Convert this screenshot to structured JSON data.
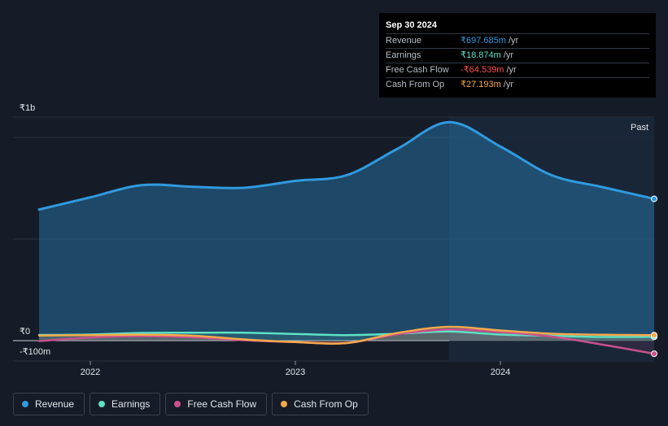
{
  "tooltip": {
    "date": "Sep 30 2024",
    "rows": [
      {
        "label": "Revenue",
        "value": "₹697.685m",
        "unit": "/yr",
        "color": "#2f9ae0"
      },
      {
        "label": "Earnings",
        "value": "₹18.874m",
        "unit": "/yr",
        "color": "#5fe0c4"
      },
      {
        "label": "Free Cash Flow",
        "value": "-₹64.539m",
        "unit": "/yr",
        "color": "#ff4d4d"
      },
      {
        "label": "Cash From Op",
        "value": "₹27.193m",
        "unit": "/yr",
        "color": "#f5a94b"
      }
    ]
  },
  "legend": [
    {
      "label": "Revenue",
      "color": "#2f9ae0"
    },
    {
      "label": "Earnings",
      "color": "#5fe0c4"
    },
    {
      "label": "Free Cash Flow",
      "color": "#c8508c"
    },
    {
      "label": "Cash From Op",
      "color": "#f5a94b"
    }
  ],
  "chart_data": {
    "type": "area",
    "y_tick_labels": [
      "₹1b",
      "₹0",
      "-₹100m"
    ],
    "y_tick_values": [
      1000,
      0,
      -100
    ],
    "x_tick_labels": [
      "2022",
      "2023",
      "2024"
    ],
    "x_tick_values": [
      2022,
      2023,
      2024
    ],
    "xlim": [
      2021.75,
      2024.75
    ],
    "ylim": [
      -100,
      1100
    ],
    "past_label": "Past",
    "past_start_x": 2023.75,
    "grid": true,
    "series": [
      {
        "name": "Revenue",
        "color": "#2f9ae0",
        "x": [
          2021.75,
          2022.0,
          2022.25,
          2022.5,
          2022.75,
          2023.0,
          2023.25,
          2023.5,
          2023.75,
          2024.0,
          2024.25,
          2024.5,
          2024.75
        ],
        "y": [
          645,
          705,
          765,
          757,
          752,
          786,
          814,
          945,
          1075,
          955,
          814,
          755,
          697.7
        ]
      },
      {
        "name": "Earnings",
        "color": "#5fe0c4",
        "x": [
          2021.75,
          2022.0,
          2022.25,
          2022.5,
          2022.75,
          2023.0,
          2023.25,
          2023.5,
          2023.75,
          2024.0,
          2024.25,
          2024.5,
          2024.75
        ],
        "y": [
          28,
          30,
          38,
          39,
          39,
          33,
          27,
          34,
          45,
          30,
          24,
          18,
          18.9
        ]
      },
      {
        "name": "Free Cash Flow",
        "color": "#c8508c",
        "x": [
          2021.75,
          2022.0,
          2022.25,
          2022.5,
          2022.75,
          2023.0,
          2023.25,
          2023.5,
          2023.75,
          2024.0,
          2024.25,
          2024.5,
          2024.75
        ],
        "y": [
          -2,
          15,
          22,
          16,
          2,
          -7,
          -12,
          32,
          55,
          42,
          20,
          -20,
          -64.5
        ]
      },
      {
        "name": "Cash From Op",
        "color": "#f5a94b",
        "x": [
          2021.75,
          2022.0,
          2022.25,
          2022.5,
          2022.75,
          2023.0,
          2023.25,
          2023.5,
          2023.75,
          2024.0,
          2024.25,
          2024.5,
          2024.75
        ],
        "y": [
          25,
          27,
          29,
          24,
          6,
          -7,
          -12,
          38,
          68,
          50,
          34,
          29,
          27.2
        ]
      }
    ]
  }
}
